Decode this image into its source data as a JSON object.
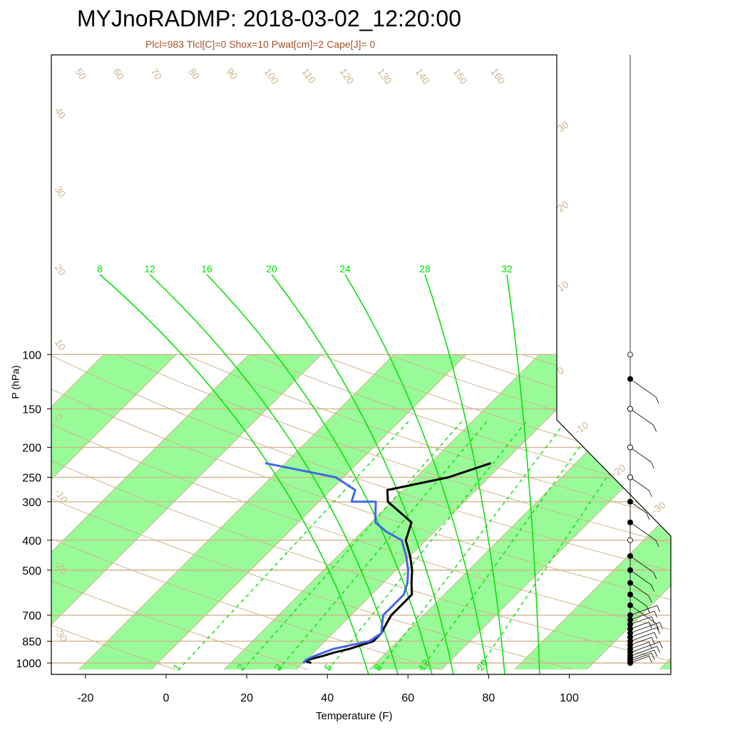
{
  "title": "MYJnoRADMP: 2018-03-02_12:20:00",
  "subtitle": "Plcl=983 Tlcl[C]=0 Shox=10 Pwat[cm]=2 Cape[J]= 0",
  "colors": {
    "band": "#98fb98",
    "isotherm": "#d2b48c",
    "mixing": "#00e000",
    "temperature": "#000000",
    "dewpoint": "#4169e1",
    "subtitle": "#a0522d"
  },
  "chart_data": {
    "type": "skew-t",
    "title": "MYJnoRADMP: 2018-03-02_12:20:00",
    "subtitle": "Plcl=983 Tlcl[C]=0 Shox=10 Pwat[cm]=2 Cape[J]= 0",
    "xlabel": "Temperature (F)",
    "ylabel": "P (hPa)",
    "x_ticks": [
      -20,
      0,
      20,
      40,
      60,
      80,
      100
    ],
    "y_ticks": [
      100,
      150,
      200,
      250,
      300,
      400,
      500,
      700,
      850,
      1000
    ],
    "xlim": [
      -28,
      109
    ],
    "ylim": [
      1050,
      100
    ],
    "isotherm_labels_top": [
      "50",
      "60",
      "70",
      "80",
      "90",
      "100",
      "110",
      "120",
      "130",
      "140",
      "150",
      "160"
    ],
    "isotherm_labels_left": [
      "40",
      "30",
      "20",
      "10",
      "0",
      "-10",
      "-20",
      "-30"
    ],
    "isotherm_labels_right": [
      "30",
      "20",
      "10",
      "0",
      "-10",
      "-20",
      "-30"
    ],
    "mixing_ratio_labels_top": [
      "8",
      "12",
      "16",
      "20",
      "24",
      "28",
      "32"
    ],
    "mixing_ratio_labels_bottom": [
      "1",
      "2",
      "3",
      "5",
      "8",
      "12",
      "20"
    ],
    "series": [
      {
        "name": "temperature",
        "points": [
          {
            "p": 1000,
            "t": 36
          },
          {
            "p": 985,
            "t": 34
          },
          {
            "p": 970,
            "t": 35
          },
          {
            "p": 950,
            "t": 37
          },
          {
            "p": 925,
            "t": 39
          },
          {
            "p": 900,
            "t": 42
          },
          {
            "p": 850,
            "t": 46
          },
          {
            "p": 800,
            "t": 46
          },
          {
            "p": 750,
            "t": 45
          },
          {
            "p": 700,
            "t": 44
          },
          {
            "p": 650,
            "t": 44
          },
          {
            "p": 600,
            "t": 44
          },
          {
            "p": 550,
            "t": 41
          },
          {
            "p": 500,
            "t": 38
          },
          {
            "p": 450,
            "t": 34
          },
          {
            "p": 400,
            "t": 29
          },
          {
            "p": 350,
            "t": 26
          },
          {
            "p": 300,
            "t": 15
          },
          {
            "p": 275,
            "t": 12
          },
          {
            "p": 250,
            "t": 24
          },
          {
            "p": 225,
            "t": 31
          }
        ]
      },
      {
        "name": "dewpoint",
        "points": [
          {
            "p": 1000,
            "t": 34
          },
          {
            "p": 975,
            "t": 34
          },
          {
            "p": 950,
            "t": 35
          },
          {
            "p": 900,
            "t": 38
          },
          {
            "p": 850,
            "t": 45
          },
          {
            "p": 800,
            "t": 46
          },
          {
            "p": 750,
            "t": 44
          },
          {
            "p": 700,
            "t": 42
          },
          {
            "p": 650,
            "t": 42
          },
          {
            "p": 600,
            "t": 42
          },
          {
            "p": 550,
            "t": 40
          },
          {
            "p": 500,
            "t": 37
          },
          {
            "p": 450,
            "t": 33
          },
          {
            "p": 400,
            "t": 28
          },
          {
            "p": 375,
            "t": 22
          },
          {
            "p": 350,
            "t": 17
          },
          {
            "p": 300,
            "t": 12
          },
          {
            "p": 300,
            "t": 6
          },
          {
            "p": 275,
            "t": 4
          },
          {
            "p": 250,
            "t": -4
          },
          {
            "p": 225,
            "t": -25
          }
        ]
      }
    ],
    "wind_levels_hpa": [
      1000,
      985,
      970,
      950,
      925,
      900,
      875,
      850,
      825,
      800,
      775,
      750,
      725,
      700,
      650,
      600,
      550,
      500,
      450,
      350,
      300,
      250,
      200,
      150,
      120
    ]
  }
}
